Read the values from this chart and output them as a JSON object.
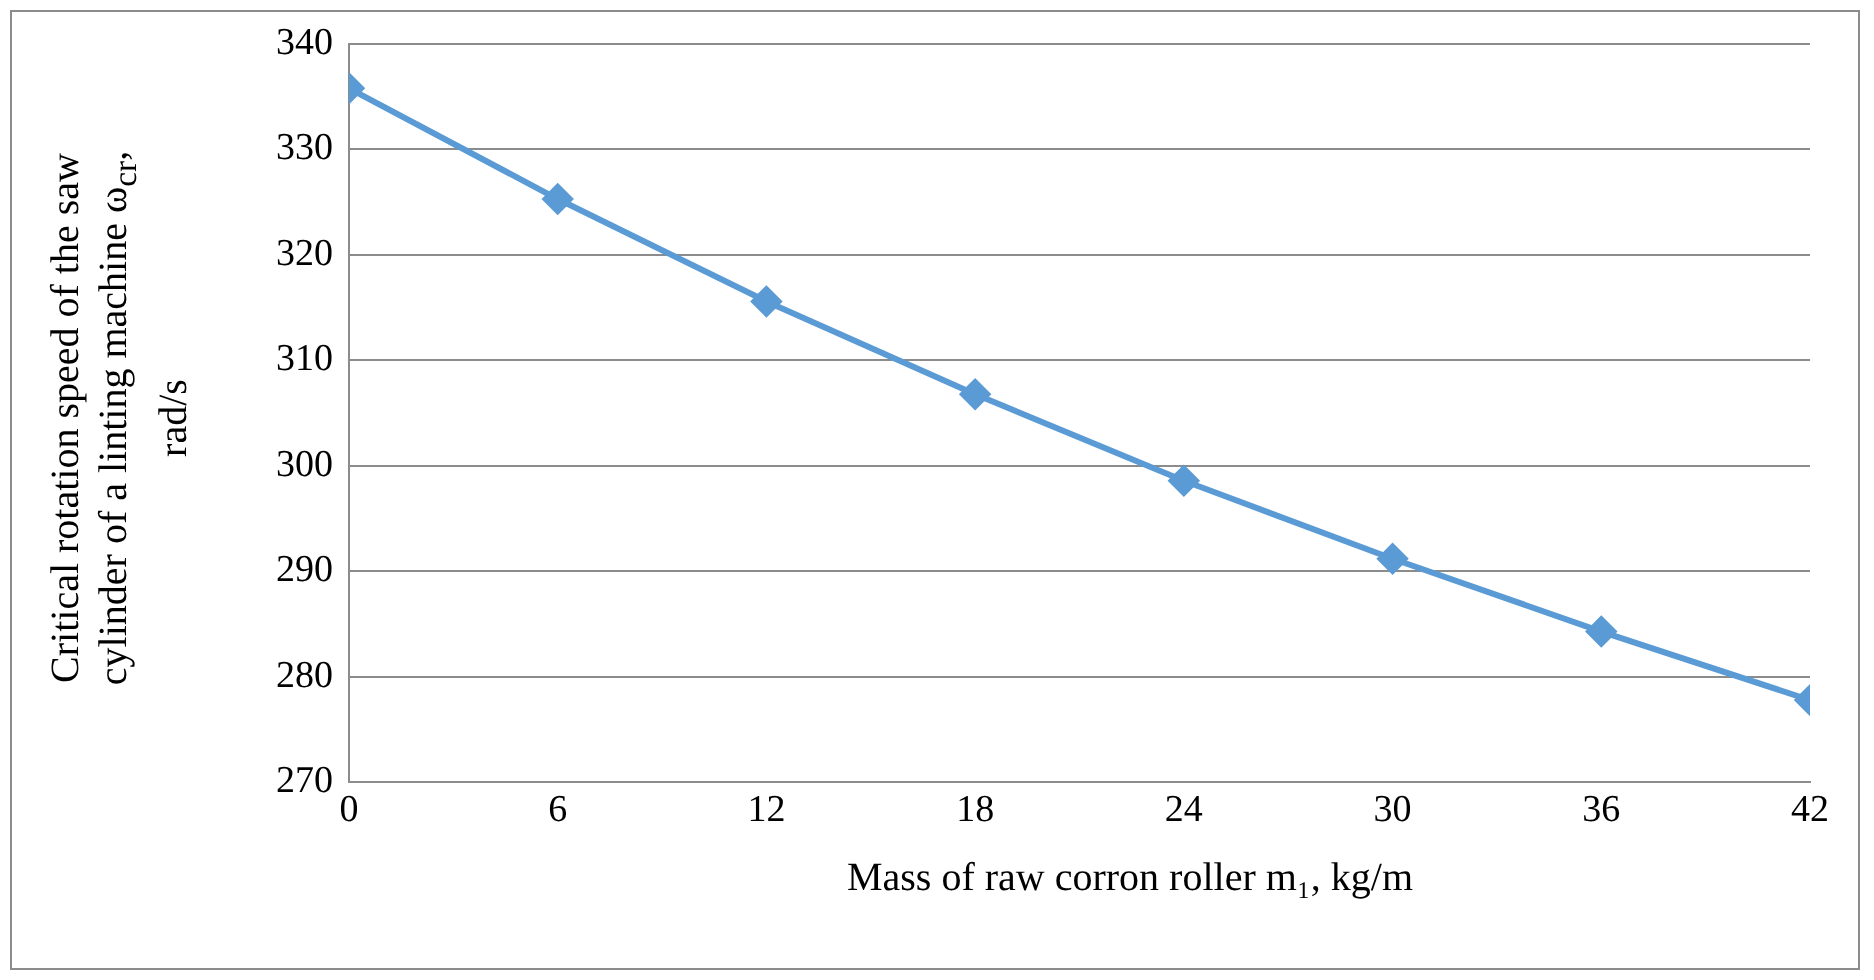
{
  "chart_data": {
    "type": "line",
    "xlabel": "Mass of raw corron roller m₁, kg/m",
    "ylabel": "Critical rotation speed of the saw cylinder of a linting machine ω$_{cr}$, rad/s",
    "x": [
      0,
      6,
      12,
      18,
      24,
      30,
      36,
      42
    ],
    "series": [
      {
        "color": "#5b9bd5",
        "values": [
          335.8,
          325.3,
          315.6,
          306.8,
          298.6,
          291.2,
          284.3,
          277.8
        ]
      }
    ],
    "xlim": [
      0,
      42
    ],
    "xticks": [
      0,
      6,
      12,
      18,
      24,
      30,
      36,
      42
    ],
    "ylim": [
      270,
      340
    ],
    "yticks": [
      270,
      280,
      290,
      300,
      310,
      320,
      330,
      340
    ],
    "grid": "y",
    "legend": false,
    "marker": "diamond",
    "line_style": "solid"
  }
}
